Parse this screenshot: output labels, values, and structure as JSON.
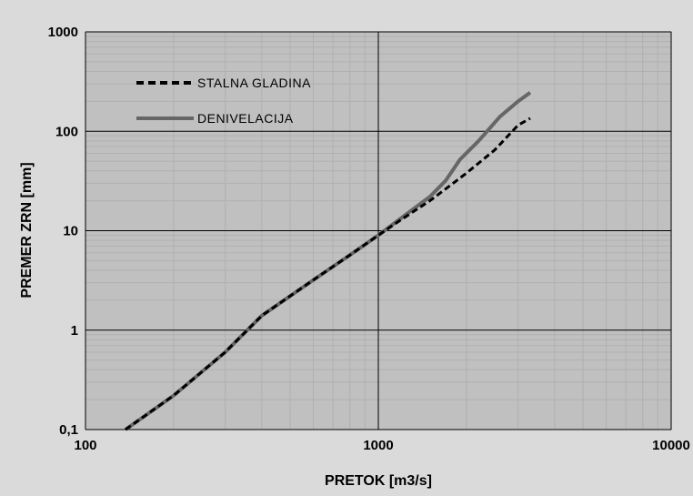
{
  "chart_data": {
    "type": "line",
    "x_scale": "log",
    "y_scale": "log",
    "xlabel": "PRETOK [m3/s]",
    "ylabel": "PREMER ZRN [mm]",
    "xlim": [
      100,
      10000
    ],
    "ylim": [
      0.1,
      1000
    ],
    "x_ticks": [
      100,
      1000,
      10000
    ],
    "x_tick_labels": [
      "100",
      "1000",
      "10000"
    ],
    "y_ticks": [
      0.1,
      1,
      10,
      100,
      1000
    ],
    "y_tick_labels": [
      "0,1",
      "1",
      "10",
      "100",
      "1000"
    ],
    "grid": true,
    "legend_position": "top-left",
    "series": [
      {
        "name": "STALNA GLADINA",
        "style": "dashed",
        "color": "#000000",
        "points": [
          [
            137,
            0.1
          ],
          [
            200,
            0.22
          ],
          [
            300,
            0.6
          ],
          [
            400,
            1.4
          ],
          [
            600,
            3.2
          ],
          [
            800,
            5.7
          ],
          [
            1000,
            9
          ],
          [
            1200,
            13
          ],
          [
            1500,
            20
          ],
          [
            1800,
            30
          ],
          [
            2000,
            38
          ],
          [
            2500,
            65
          ],
          [
            3000,
            115
          ],
          [
            3300,
            135
          ]
        ]
      },
      {
        "name": "DENIVELACIJA",
        "style": "solid",
        "color": "#666666",
        "points": [
          [
            137,
            0.1
          ],
          [
            200,
            0.22
          ],
          [
            300,
            0.6
          ],
          [
            400,
            1.4
          ],
          [
            600,
            3.2
          ],
          [
            800,
            5.7
          ],
          [
            1000,
            9
          ],
          [
            1200,
            13.5
          ],
          [
            1500,
            22
          ],
          [
            1700,
            32
          ],
          [
            1900,
            52
          ],
          [
            2200,
            80
          ],
          [
            2600,
            140
          ],
          [
            3000,
            200
          ],
          [
            3300,
            245
          ]
        ]
      }
    ]
  },
  "colors": {
    "plot_background": "#c0c0c0",
    "frame_background": "#d9d9d9",
    "major_grid": "#000000",
    "minor_grid": "#b0b0b0",
    "series_dashed": "#000000",
    "series_solid": "#666666"
  }
}
